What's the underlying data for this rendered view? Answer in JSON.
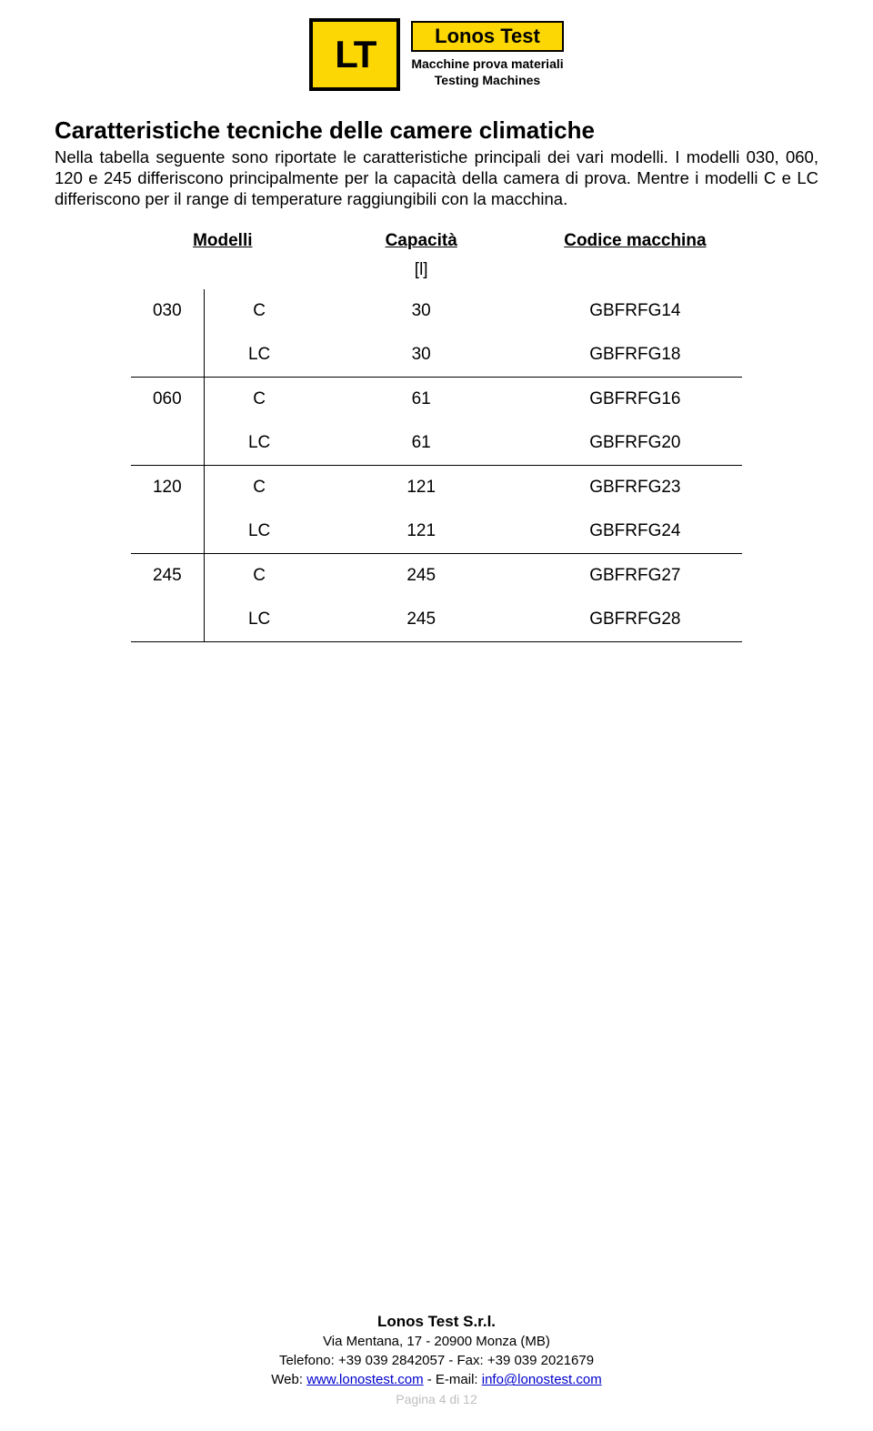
{
  "brand": {
    "logo_text": "LT",
    "name": "Lonos Test",
    "sub1": "Macchine prova materiali",
    "sub2": "Testing Machines"
  },
  "section": {
    "title": "Caratteristiche tecniche delle camere climatiche",
    "intro": "Nella tabella seguente sono riportate le caratteristiche principali dei vari modelli. I modelli 030, 060, 120 e 245 differiscono principalmente per la capacità della camera di prova. Mentre i modelli C e LC differiscono per il range di temperature raggiungibili con la macchina."
  },
  "table": {
    "headers": {
      "models": "Modelli",
      "capacity": "Capacità",
      "code": "Codice macchina"
    },
    "unit": "[l]",
    "groups": [
      {
        "num": "030",
        "rows": [
          {
            "variant": "C",
            "cap": "30",
            "code": "GBFRFG14"
          },
          {
            "variant": "LC",
            "cap": "30",
            "code": "GBFRFG18"
          }
        ]
      },
      {
        "num": "060",
        "rows": [
          {
            "variant": "C",
            "cap": "61",
            "code": "GBFRFG16"
          },
          {
            "variant": "LC",
            "cap": "61",
            "code": "GBFRFG20"
          }
        ]
      },
      {
        "num": "120",
        "rows": [
          {
            "variant": "C",
            "cap": "121",
            "code": "GBFRFG23"
          },
          {
            "variant": "LC",
            "cap": "121",
            "code": "GBFRFG24"
          }
        ]
      },
      {
        "num": "245",
        "rows": [
          {
            "variant": "C",
            "cap": "245",
            "code": "GBFRFG27"
          },
          {
            "variant": "LC",
            "cap": "245",
            "code": "GBFRFG28"
          }
        ]
      }
    ]
  },
  "footer": {
    "company": "Lonos Test S.r.l.",
    "address": "Via Mentana, 17  -  20900 Monza (MB)",
    "phone": "Telefono: +39 039 2842057  -  Fax: +39 039 2021679",
    "web_label": "Web: ",
    "web_url": "www.lonostest.com",
    "email_label": "  -  E-mail: ",
    "email": "info@lonostest.com",
    "page": "Pagina 4 di 12"
  }
}
